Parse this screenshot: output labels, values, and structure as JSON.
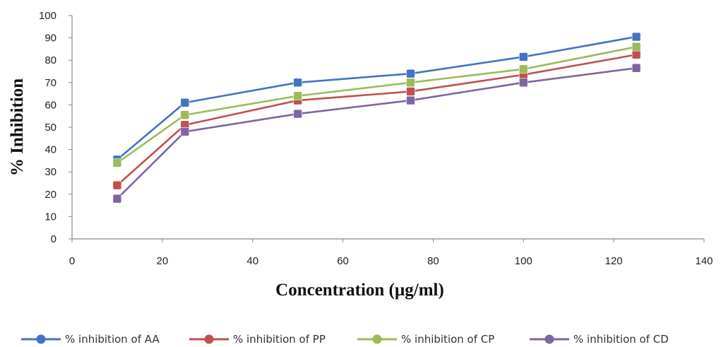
{
  "chart_data": {
    "type": "line",
    "title": "",
    "xlabel": "Concentration (µg/ml)",
    "ylabel": "% Inhibition",
    "xlim": [
      0,
      140
    ],
    "ylim": [
      0,
      100
    ],
    "xticks": [
      0,
      20,
      40,
      60,
      80,
      100,
      120,
      140
    ],
    "yticks": [
      0,
      10,
      20,
      30,
      40,
      50,
      60,
      70,
      80,
      90,
      100
    ],
    "grid": false,
    "legend_position": "bottom",
    "marker": "square",
    "x": [
      10,
      25,
      50,
      75,
      100,
      125
    ],
    "series": [
      {
        "name": "% inhibition of AA",
        "color": "#4472c4",
        "values": [
          35.5,
          61,
          70,
          74,
          81.5,
          90.5
        ]
      },
      {
        "name": "% inhibition of PP",
        "color": "#c0504d",
        "values": [
          24,
          51,
          62,
          66,
          73.5,
          82.5
        ]
      },
      {
        "name": "% inhibition of CP",
        "color": "#9bbb59",
        "values": [
          34,
          55.5,
          64,
          70,
          76,
          86
        ]
      },
      {
        "name": "% inhibition of CD",
        "color": "#8064a2",
        "values": [
          18,
          48,
          56,
          62,
          70,
          76.5
        ]
      }
    ]
  }
}
